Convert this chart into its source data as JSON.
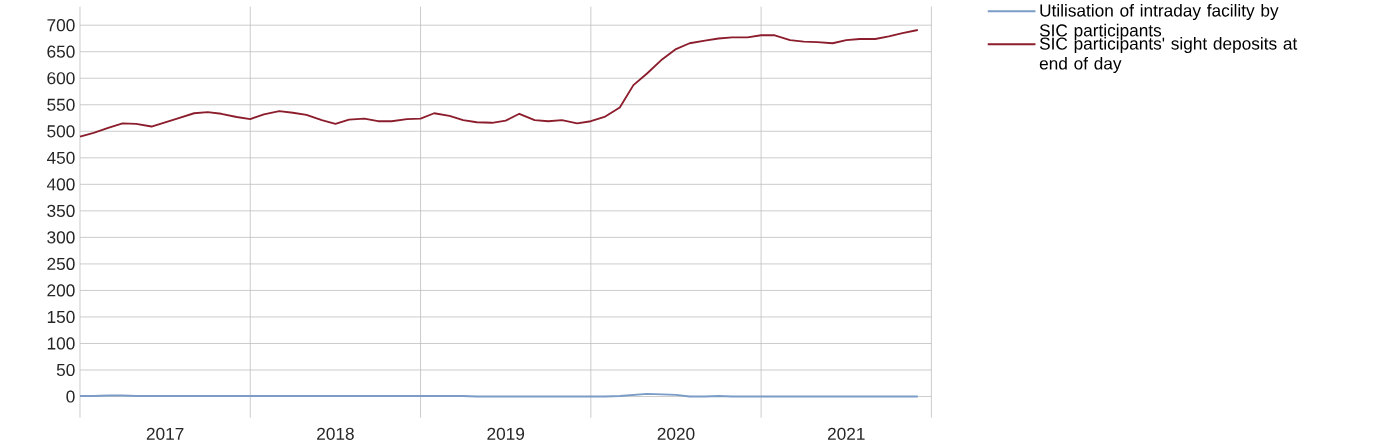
{
  "chart_data": {
    "type": "line",
    "x": [
      "2017-01",
      "2017-02",
      "2017-03",
      "2017-04",
      "2017-05",
      "2017-06",
      "2017-07",
      "2017-08",
      "2017-09",
      "2017-10",
      "2017-11",
      "2017-12",
      "2018-01",
      "2018-02",
      "2018-03",
      "2018-04",
      "2018-05",
      "2018-06",
      "2018-07",
      "2018-08",
      "2018-09",
      "2018-10",
      "2018-11",
      "2018-12",
      "2019-01",
      "2019-02",
      "2019-03",
      "2019-04",
      "2019-05",
      "2019-06",
      "2019-07",
      "2019-08",
      "2019-09",
      "2019-10",
      "2019-11",
      "2019-12",
      "2020-01",
      "2020-02",
      "2020-03",
      "2020-04",
      "2020-05",
      "2020-06",
      "2020-07",
      "2020-08",
      "2020-09",
      "2020-10",
      "2020-11",
      "2020-12",
      "2021-01",
      "2021-02",
      "2021-03",
      "2021-04",
      "2021-05",
      "2021-06",
      "2021-07",
      "2021-08",
      "2021-09",
      "2021-10",
      "2021-11",
      "2021-12"
    ],
    "series": [
      {
        "name": "Utilisation of intraday facility by SIC participants",
        "color": "#7a9cc6",
        "values": [
          1,
          1,
          2,
          2,
          1,
          1,
          1,
          1,
          1,
          1,
          1,
          1,
          1,
          1,
          1,
          1,
          1,
          1,
          1,
          1,
          1,
          1,
          1,
          1,
          1,
          1,
          1,
          1,
          0,
          0,
          0,
          0,
          0,
          0,
          0,
          0,
          0,
          0,
          1,
          3,
          5,
          4,
          3,
          0,
          0,
          1,
          0,
          0,
          0,
          0,
          0,
          0,
          0,
          0,
          0,
          0,
          0,
          0,
          0,
          0
        ]
      },
      {
        "name": "SIC participants' sight deposits at end of day",
        "color": "#8b1d2c",
        "values": [
          490,
          497,
          507,
          515,
          514,
          509,
          517,
          525,
          534,
          536,
          533,
          527,
          523,
          532,
          538,
          535,
          531,
          521,
          514,
          522,
          524,
          519,
          519,
          523,
          524,
          534,
          529,
          521,
          517,
          516,
          520,
          533,
          521,
          519,
          521,
          515,
          519,
          527,
          545,
          587,
          609,
          636,
          655,
          666,
          671,
          675,
          677,
          677,
          681,
          681,
          672,
          669,
          668,
          666,
          672,
          674,
          674,
          679,
          685,
          691
        ]
      }
    ],
    "xlim": [
      "2017-01",
      "2022-01"
    ],
    "xticks": [
      {
        "value": "2017-01",
        "label": null
      },
      {
        "value": "2017-07",
        "label": "2017"
      },
      {
        "value": "2018-01",
        "label": null
      },
      {
        "value": "2018-07",
        "label": "2018"
      },
      {
        "value": "2019-01",
        "label": null
      },
      {
        "value": "2019-07",
        "label": "2019"
      },
      {
        "value": "2020-01",
        "label": null
      },
      {
        "value": "2020-07",
        "label": "2020"
      },
      {
        "value": "2021-01",
        "label": null
      },
      {
        "value": "2021-07",
        "label": "2021"
      },
      {
        "value": "2022-01",
        "label": null
      }
    ],
    "ylim": [
      -40,
      735
    ],
    "yticks": [
      0,
      50,
      100,
      150,
      200,
      250,
      300,
      350,
      400,
      450,
      500,
      550,
      600,
      650,
      700
    ],
    "grid": true,
    "legend": "top right",
    "marker": "none",
    "line_style": "solid"
  }
}
